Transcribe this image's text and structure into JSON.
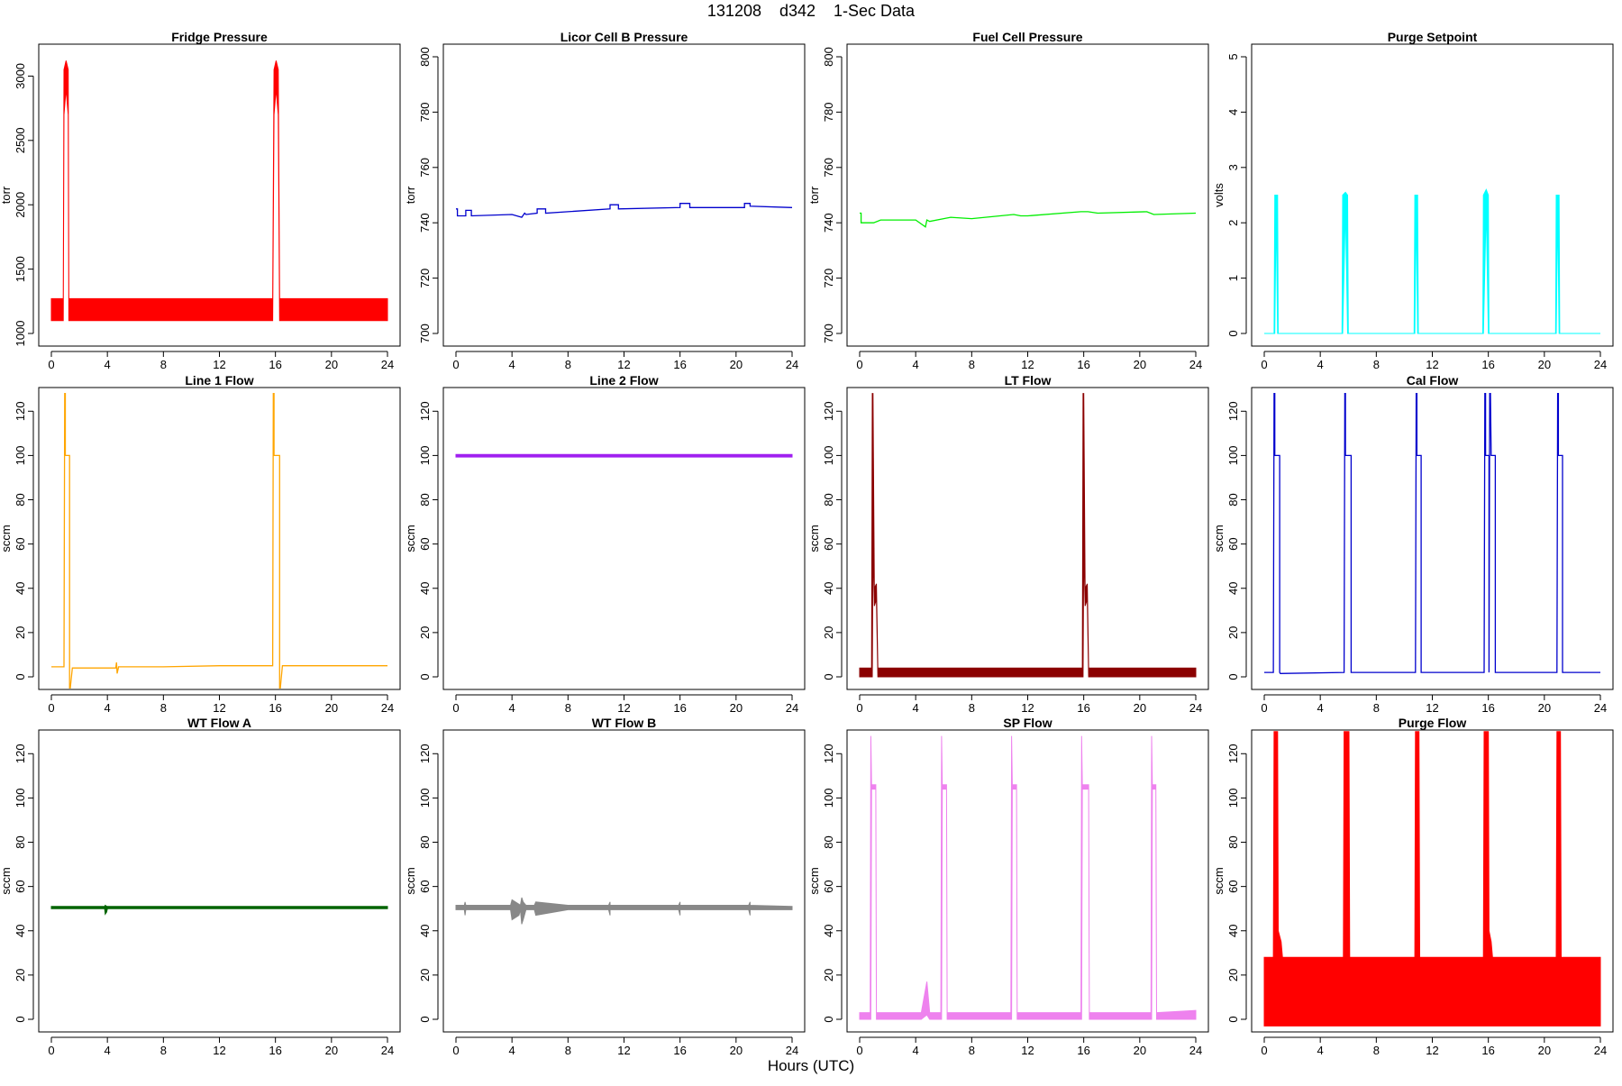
{
  "figure": {
    "title": "131208    d342    1-Sec Data",
    "x_axis_label": "Hours (UTC)"
  },
  "chart_data": [
    {
      "type": "line",
      "title": "Fridge Pressure",
      "ylabel": "torr",
      "color": "#ff0000",
      "xlim": [
        0,
        24
      ],
      "ylim": [
        1000,
        3150
      ],
      "xticks": [
        0,
        4,
        8,
        12,
        16,
        20,
        24
      ],
      "yticks": [
        1000,
        1500,
        2000,
        2500,
        3000
      ],
      "series": [
        {
          "render": "band",
          "x": [
            0,
            0.85,
            0.9,
            1.05,
            1.2,
            1.25,
            15.8,
            15.9,
            16.05,
            16.2,
            16.3,
            24
          ],
          "ymin": [
            1100,
            1100,
            2700,
            2900,
            2700,
            1100,
            1100,
            2700,
            2900,
            2700,
            1100,
            1100
          ],
          "ymax": [
            1270,
            1270,
            3050,
            3120,
            3050,
            1270,
            1270,
            3050,
            3120,
            3050,
            1270,
            1270
          ]
        }
      ]
    },
    {
      "type": "line",
      "title": "Licor Cell B Pressure",
      "ylabel": "torr",
      "color": "#0000cd",
      "xlim": [
        0,
        24
      ],
      "ylim": [
        700,
        800
      ],
      "xticks": [
        0,
        4,
        8,
        12,
        16,
        20,
        24
      ],
      "yticks": [
        700,
        720,
        740,
        760,
        780,
        800
      ],
      "series": [
        {
          "render": "line",
          "x": [
            0,
            0.1,
            0.1,
            0.7,
            0.7,
            1.1,
            1.1,
            4,
            4.7,
            4.9,
            5,
            5.8,
            5.8,
            6.4,
            6.4,
            8,
            11,
            11,
            11.6,
            11.6,
            16,
            16,
            16.7,
            16.7,
            20.6,
            20.6,
            21,
            21,
            24
          ],
          "y": [
            745,
            745,
            742.5,
            742.5,
            744.5,
            744.5,
            742.5,
            743,
            742,
            743.5,
            743,
            743.5,
            745,
            745,
            743.5,
            744,
            745,
            746.5,
            746.5,
            745,
            745.5,
            747,
            747,
            745.5,
            745.5,
            747,
            747,
            746,
            745.5
          ]
        }
      ]
    },
    {
      "type": "line",
      "title": "Fuel Cell Pressure",
      "ylabel": "torr",
      "color": "#00ee00",
      "xlim": [
        0,
        24
      ],
      "ylim": [
        700,
        800
      ],
      "xticks": [
        0,
        4,
        8,
        12,
        16,
        20,
        24
      ],
      "yticks": [
        700,
        720,
        740,
        760,
        780,
        800
      ],
      "series": [
        {
          "render": "line",
          "x": [
            0,
            0.1,
            0.1,
            1,
            1.5,
            4,
            4.7,
            4.8,
            5,
            6,
            6.5,
            8,
            11,
            11.5,
            12,
            15.8,
            16.3,
            17,
            20.5,
            21,
            24
          ],
          "y": [
            743.5,
            743.5,
            740,
            740,
            741,
            741,
            738.5,
            741,
            740.5,
            741.5,
            742,
            741.5,
            743,
            742.5,
            742.5,
            744,
            744,
            743.5,
            744,
            743,
            743.5
          ]
        }
      ]
    },
    {
      "type": "line",
      "title": "Purge Setpoint",
      "ylabel": "volts",
      "color": "#00ffff",
      "xlim": [
        0,
        24
      ],
      "ylim": [
        0,
        5
      ],
      "xticks": [
        0,
        4,
        8,
        12,
        16,
        20,
        24
      ],
      "yticks": [
        0,
        1,
        2,
        3,
        4,
        5
      ],
      "series": [
        {
          "render": "band",
          "x": [
            0,
            0.7,
            0.75,
            0.85,
            0.95,
            1,
            5.55,
            5.6,
            5.8,
            5.95,
            6,
            10.7,
            10.75,
            10.85,
            10.95,
            11,
            15.6,
            15.65,
            15.85,
            16,
            16.05,
            20.8,
            20.85,
            20.95,
            21.05,
            21.1,
            24
          ],
          "ymin": [
            0,
            0,
            0,
            2.3,
            0,
            0,
            0,
            0,
            2.3,
            0,
            0,
            0,
            0,
            2.3,
            0,
            0,
            0,
            0,
            2.3,
            0,
            0,
            0,
            0,
            2.3,
            0,
            0,
            0
          ],
          "ymax": [
            0,
            0,
            2.5,
            2.5,
            2.5,
            0,
            0,
            2.5,
            2.55,
            2.5,
            0,
            0,
            2.5,
            2.5,
            2.5,
            0,
            0,
            2.5,
            2.6,
            2.5,
            0,
            0,
            2.5,
            2.5,
            2.5,
            0,
            0
          ]
        }
      ]
    },
    {
      "type": "line",
      "title": "Line 1 Flow",
      "ylabel": "sccm",
      "color": "#ffa500",
      "xlim": [
        0,
        24
      ],
      "ylim": [
        0,
        125
      ],
      "xticks": [
        0,
        4,
        8,
        12,
        16,
        20,
        24
      ],
      "yticks": [
        0,
        20,
        40,
        60,
        80,
        100,
        120
      ],
      "series": [
        {
          "render": "line",
          "x": [
            0,
            0.9,
            0.95,
            1.0,
            1.0,
            1.3,
            1.3,
            1.35,
            1.5,
            4.6,
            4.65,
            4.7,
            4.8,
            8,
            12,
            15.8,
            15.85,
            15.9,
            15.9,
            16.3,
            16.3,
            16.35,
            16.5,
            20,
            24
          ],
          "y": [
            4.5,
            4.5,
            128,
            128,
            100,
            100,
            -5,
            -5,
            4,
            4,
            6.5,
            1.5,
            4.5,
            4.5,
            5,
            5,
            128,
            128,
            100,
            100,
            -5,
            -5,
            5,
            5,
            5
          ]
        }
      ]
    },
    {
      "type": "line",
      "title": "Line 2 Flow",
      "ylabel": "sccm",
      "color": "#a020f0",
      "xlim": [
        0,
        24
      ],
      "ylim": [
        0,
        125
      ],
      "xticks": [
        0,
        4,
        8,
        12,
        16,
        20,
        24
      ],
      "yticks": [
        0,
        20,
        40,
        60,
        80,
        100,
        120
      ],
      "series": [
        {
          "render": "band",
          "x": [
            0,
            24
          ],
          "ymin": [
            99.3,
            99.3
          ],
          "ymax": [
            100.5,
            100.5
          ]
        }
      ]
    },
    {
      "type": "line",
      "title": "LT Flow",
      "ylabel": "sccm",
      "color": "#8b0000",
      "xlim": [
        0,
        24
      ],
      "ylim": [
        0,
        125
      ],
      "xticks": [
        0,
        4,
        8,
        12,
        16,
        20,
        24
      ],
      "yticks": [
        0,
        20,
        40,
        60,
        80,
        100,
        120
      ],
      "series": [
        {
          "render": "band",
          "x": [
            0,
            0.85,
            0.9,
            0.95,
            1.05,
            1.2,
            1.3,
            1.35,
            15.9,
            15.95,
            16.0,
            16.1,
            16.25,
            16.35,
            24
          ],
          "ymin": [
            0,
            0,
            0,
            60,
            32,
            35,
            0,
            0,
            0,
            0,
            60,
            32,
            35,
            0,
            0
          ],
          "ymax": [
            4,
            4,
            128,
            128,
            40,
            42,
            4,
            4,
            4,
            128,
            128,
            40,
            42,
            4,
            4
          ]
        }
      ]
    },
    {
      "type": "line",
      "title": "Cal Flow",
      "ylabel": "sccm",
      "color": "#0000cd",
      "xlim": [
        0,
        24
      ],
      "ylim": [
        0,
        125
      ],
      "xticks": [
        0,
        4,
        8,
        12,
        16,
        20,
        24
      ],
      "yticks": [
        0,
        20,
        40,
        60,
        80,
        100,
        120
      ],
      "series": [
        {
          "render": "line",
          "x": [
            0,
            0.65,
            0.7,
            0.75,
            0.75,
            1.1,
            1.1,
            1.15,
            5.7,
            5.75,
            5.8,
            5.8,
            6.2,
            6.2,
            6.25,
            10.8,
            10.85,
            10.9,
            10.9,
            11.2,
            11.2,
            11.25,
            15.7,
            15.75,
            15.8,
            15.8,
            16.05,
            16.05,
            16.1,
            16.15,
            16.2,
            16.2,
            16.5,
            16.5,
            16.55,
            20.9,
            20.95,
            21,
            21,
            21.3,
            21.3,
            21.35,
            24
          ],
          "y": [
            2,
            2,
            128,
            128,
            100,
            100,
            2,
            1.5,
            2,
            128,
            128,
            100,
            100,
            2,
            2,
            2,
            128,
            128,
            100,
            100,
            2,
            2,
            2,
            128,
            128,
            100,
            100,
            2,
            128,
            128,
            100,
            100,
            100,
            2,
            2,
            2,
            128,
            128,
            100,
            100,
            2,
            2,
            2
          ]
        }
      ]
    },
    {
      "type": "line",
      "title": "WT Flow A",
      "ylabel": "sccm",
      "color": "#006400",
      "xlim": [
        0,
        24
      ],
      "ylim": [
        0,
        125
      ],
      "xticks": [
        0,
        4,
        8,
        12,
        16,
        20,
        24
      ],
      "yticks": [
        0,
        20,
        40,
        60,
        80,
        100,
        120
      ],
      "series": [
        {
          "render": "band",
          "x": [
            0,
            3.8,
            3.85,
            3.95,
            4.0,
            24
          ],
          "ymin": [
            50,
            50,
            47.5,
            48.5,
            50,
            50
          ],
          "ymax": [
            51,
            51,
            51.5,
            51,
            51,
            51
          ]
        }
      ]
    },
    {
      "type": "line",
      "title": "WT Flow B",
      "ylabel": "sccm",
      "color": "#888888",
      "xlim": [
        0,
        24
      ],
      "ylim": [
        0,
        125
      ],
      "xticks": [
        0,
        4,
        8,
        12,
        16,
        20,
        24
      ],
      "yticks": [
        0,
        20,
        40,
        60,
        80,
        100,
        120
      ],
      "series": [
        {
          "render": "band",
          "x": [
            0,
            0.6,
            0.65,
            0.7,
            3.9,
            4.0,
            4.5,
            4.6,
            4.7,
            4.8,
            5.0,
            5.6,
            5.7,
            8,
            10.9,
            11,
            11,
            15.9,
            16,
            16,
            20.9,
            21,
            21,
            24
          ],
          "ymin": [
            49.5,
            49.5,
            47,
            49.5,
            49.5,
            45,
            47,
            49.5,
            43,
            45,
            49.5,
            49.5,
            47,
            49.5,
            49.5,
            47,
            49.5,
            49.5,
            47,
            49.5,
            49.5,
            47,
            49.5,
            49.5
          ],
          "ymax": [
            51.5,
            51.5,
            53,
            51.5,
            51.5,
            54,
            52,
            51.5,
            55,
            53,
            51.5,
            51.5,
            53,
            51.5,
            51.5,
            53,
            51.5,
            51.5,
            53,
            51.5,
            51.5,
            53,
            51.5,
            51
          ]
        }
      ]
    },
    {
      "type": "line",
      "title": "SP Flow",
      "ylabel": "sccm",
      "color": "#ee82ee",
      "xlim": [
        0,
        24
      ],
      "ylim": [
        0,
        125
      ],
      "xticks": [
        0,
        4,
        8,
        12,
        16,
        20,
        24
      ],
      "yticks": [
        0,
        20,
        40,
        60,
        80,
        100,
        120
      ],
      "series": [
        {
          "render": "band",
          "x": [
            0,
            0.75,
            0.8,
            0.85,
            1.15,
            1.2,
            4.4,
            4.6,
            4.8,
            5.0,
            5.8,
            5.85,
            5.9,
            6.2,
            6.25,
            10.8,
            10.85,
            10.9,
            11.2,
            11.25,
            15.8,
            15.85,
            15.9,
            16.35,
            16.4,
            20.8,
            20.85,
            20.9,
            21.15,
            21.2,
            24
          ],
          "ymin": [
            0,
            0,
            0,
            104,
            104,
            0,
            0,
            1,
            2,
            0,
            0,
            0,
            104,
            104,
            0,
            0,
            0,
            104,
            104,
            0,
            0,
            0,
            104,
            104,
            0,
            0,
            0,
            104,
            104,
            0,
            0
          ],
          "ymax": [
            3,
            3,
            128,
            106,
            106,
            3,
            3,
            10,
            17,
            3,
            3,
            128,
            106,
            106,
            3,
            3,
            128,
            106,
            106,
            3,
            3,
            128,
            106,
            106,
            3,
            3,
            128,
            106,
            106,
            3,
            4
          ]
        }
      ]
    },
    {
      "type": "line",
      "title": "Purge Flow",
      "ylabel": "sccm",
      "color": "#ff0000",
      "xlim": [
        0,
        24
      ],
      "ylim": [
        0,
        125
      ],
      "xticks": [
        0,
        4,
        8,
        12,
        16,
        20,
        24
      ],
      "yticks": [
        0,
        20,
        40,
        60,
        80,
        100,
        120
      ],
      "series": [
        {
          "render": "band",
          "x": [
            0,
            0.65,
            0.7,
            0.95,
            1.0,
            1.2,
            1.3,
            5.65,
            5.7,
            6.05,
            6.1,
            10.75,
            10.8,
            11.05,
            11.1,
            15.65,
            15.7,
            16.0,
            16.05,
            16.2,
            16.3,
            20.85,
            20.9,
            21.15,
            21.2,
            24
          ],
          "ymin": [
            -3,
            -3,
            -3,
            -3,
            -3,
            -3,
            -3,
            -3,
            -3,
            -3,
            -3,
            -3,
            -3,
            -3,
            -3,
            -3,
            -3,
            -3,
            -3,
            -3,
            -3,
            -3,
            -3,
            -3,
            -3,
            -3
          ],
          "ymax": [
            28,
            28,
            130,
            130,
            40,
            35,
            28,
            28,
            130,
            130,
            28,
            28,
            130,
            130,
            28,
            28,
            130,
            130,
            40,
            35,
            28,
            28,
            130,
            130,
            28,
            28
          ]
        }
      ]
    }
  ]
}
